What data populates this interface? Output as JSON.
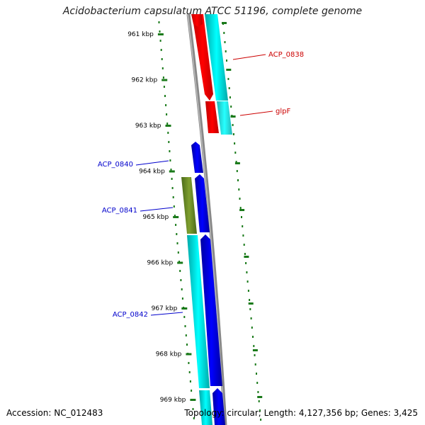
{
  "title": "Acidobacterium capsulatum ATCC 51196, complete genome",
  "footer": {
    "accession": "Accession: NC_012483",
    "topology": "Topology: circular; Length: 4,127,356 bp; Genes: 3,425"
  },
  "colors": {
    "backbone": "#888888",
    "tick": "#1a7a1a",
    "plus_gene": "#ff0000",
    "plus_cds": "#00e5e5",
    "minus_gene": "#0000ee",
    "minus_cds": "#00cccc",
    "minus_other": "#6b8e23",
    "label_plus": "#cc0000",
    "label_minus": "#0000cc"
  },
  "ticks": [
    "961 kbp",
    "962 kbp",
    "963 kbp",
    "964 kbp",
    "965 kbp",
    "966 kbp",
    "967 kbp",
    "968 kbp",
    "969 kbp"
  ],
  "gene_labels": [
    {
      "text": "ACP_0838",
      "strand": "plus"
    },
    {
      "text": "glpF",
      "strand": "plus"
    },
    {
      "text": "ACP_0840",
      "strand": "minus"
    },
    {
      "text": "ACP_0841",
      "strand": "minus"
    },
    {
      "text": "ACP_0842",
      "strand": "minus"
    }
  ]
}
